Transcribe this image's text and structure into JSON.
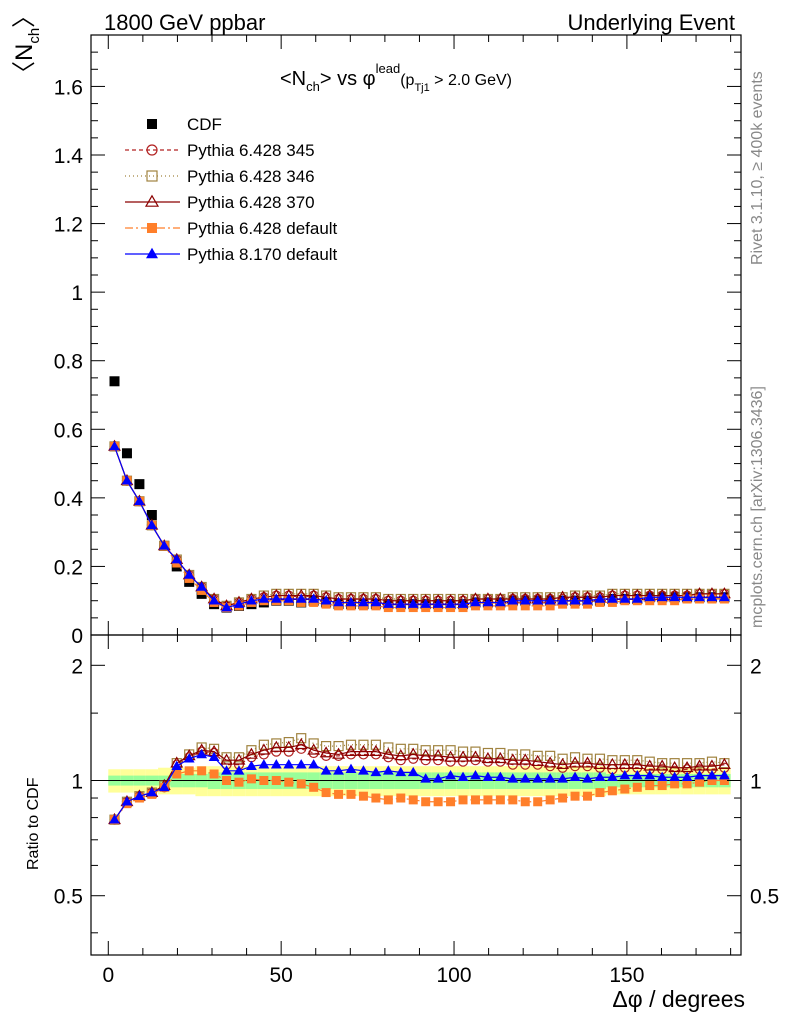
{
  "header": {
    "left": "1800 GeV ppbar",
    "right": "Underlying Event"
  },
  "side_labels": {
    "rivet": "Rivet 3.1.10, ≥ 400k events",
    "mcplots": "mcplots.cern.ch [arXiv:1306.3436]"
  },
  "plot_title": {
    "main": "<N",
    "main_sub": "ch",
    "mid": "> vs φ",
    "mid_sup": "lead",
    "paren_open": "(p",
    "paren_sub": "Tj1",
    "paren_rest": " > 2.0 GeV)"
  },
  "axes": {
    "ylabel_main": "〈N",
    "ylabel_sub": "ch",
    "ylabel_close": "〉",
    "ylabel_ratio": "Ratio to CDF",
    "xlabel": "Δφ / degrees"
  },
  "legend": [
    "CDF",
    "Pythia 6.428 345",
    "Pythia 6.428 346",
    "Pythia 6.428 370",
    "Pythia 6.428 default",
    "Pythia 8.170 default"
  ],
  "colors": {
    "cdf": "#000000",
    "p345": "#b22222",
    "p346": "#a0833f",
    "p370": "#8b0000",
    "pdef": "#ff7f2a",
    "p8": "#0000ff",
    "band_inner": "#99ff99",
    "band_outer": "#ffff99"
  },
  "chart_data": {
    "type": "scatter",
    "x": [
      1.8,
      5.4,
      9.0,
      12.6,
      16.2,
      19.8,
      23.4,
      27.0,
      30.6,
      34.2,
      37.8,
      41.4,
      45.0,
      48.6,
      52.2,
      55.8,
      59.4,
      63.0,
      66.6,
      70.2,
      73.8,
      77.4,
      81.0,
      84.6,
      88.2,
      91.8,
      95.4,
      99.0,
      102.6,
      106.2,
      109.8,
      113.4,
      117.0,
      120.6,
      124.2,
      127.8,
      131.4,
      135.0,
      138.6,
      142.2,
      145.8,
      149.4,
      153.0,
      156.6,
      160.2,
      163.8,
      167.4,
      171.0,
      174.6,
      178.2
    ],
    "xlim": [
      -5,
      183
    ],
    "ylim_main": [
      0,
      1.75
    ],
    "ylim_ratio": [
      0.35,
      2.4
    ],
    "ratio_log": true,
    "series": [
      {
        "name": "CDF",
        "values": [
          0.74,
          0.53,
          0.44,
          0.35,
          0.26,
          0.2,
          0.155,
          0.12,
          0.09,
          0.08,
          0.085,
          0.09,
          0.095,
          0.1,
          0.1,
          0.095,
          0.1,
          0.095,
          0.09,
          0.09,
          0.09,
          0.09,
          0.09,
          0.09,
          0.09,
          0.09,
          0.09,
          0.09,
          0.09,
          0.095,
          0.095,
          0.095,
          0.1,
          0.1,
          0.1,
          0.1,
          0.1,
          0.1,
          0.1,
          0.1,
          0.105,
          0.105,
          0.105,
          0.11,
          0.11,
          0.11,
          0.11,
          0.11,
          0.11,
          0.11
        ]
      },
      {
        "name": "Pythia 6.428 345",
        "values": [
          0.55,
          0.45,
          0.39,
          0.32,
          0.26,
          0.22,
          0.175,
          0.14,
          0.105,
          0.085,
          0.095,
          0.105,
          0.11,
          0.115,
          0.115,
          0.11,
          0.115,
          0.11,
          0.105,
          0.105,
          0.105,
          0.105,
          0.1,
          0.1,
          0.1,
          0.1,
          0.1,
          0.1,
          0.1,
          0.105,
          0.105,
          0.105,
          0.105,
          0.105,
          0.105,
          0.105,
          0.105,
          0.11,
          0.11,
          0.11,
          0.115,
          0.115,
          0.115,
          0.115,
          0.115,
          0.115,
          0.115,
          0.12,
          0.12,
          0.12
        ]
      },
      {
        "name": "Pythia 6.428 346",
        "values": [
          0.55,
          0.45,
          0.39,
          0.32,
          0.26,
          0.22,
          0.175,
          0.14,
          0.105,
          0.085,
          0.095,
          0.105,
          0.115,
          0.12,
          0.12,
          0.12,
          0.12,
          0.115,
          0.11,
          0.11,
          0.11,
          0.11,
          0.105,
          0.105,
          0.105,
          0.105,
          0.105,
          0.105,
          0.105,
          0.105,
          0.105,
          0.105,
          0.11,
          0.11,
          0.11,
          0.11,
          0.11,
          0.115,
          0.115,
          0.115,
          0.12,
          0.12,
          0.12,
          0.12,
          0.12,
          0.12,
          0.12,
          0.12,
          0.12,
          0.12
        ]
      },
      {
        "name": "Pythia 6.428 370",
        "values": [
          0.55,
          0.45,
          0.39,
          0.32,
          0.26,
          0.22,
          0.175,
          0.14,
          0.105,
          0.085,
          0.095,
          0.105,
          0.11,
          0.115,
          0.115,
          0.115,
          0.115,
          0.11,
          0.105,
          0.105,
          0.105,
          0.105,
          0.1,
          0.1,
          0.1,
          0.1,
          0.1,
          0.1,
          0.1,
          0.105,
          0.105,
          0.105,
          0.105,
          0.105,
          0.105,
          0.105,
          0.11,
          0.11,
          0.11,
          0.11,
          0.115,
          0.115,
          0.115,
          0.115,
          0.115,
          0.115,
          0.115,
          0.12,
          0.12,
          0.12
        ]
      },
      {
        "name": "Pythia 6.428 default",
        "values": [
          0.55,
          0.45,
          0.39,
          0.32,
          0.26,
          0.21,
          0.165,
          0.13,
          0.095,
          0.08,
          0.085,
          0.095,
          0.1,
          0.1,
          0.1,
          0.095,
          0.095,
          0.09,
          0.085,
          0.085,
          0.085,
          0.085,
          0.08,
          0.08,
          0.08,
          0.08,
          0.08,
          0.08,
          0.08,
          0.085,
          0.085,
          0.085,
          0.085,
          0.085,
          0.085,
          0.085,
          0.09,
          0.09,
          0.09,
          0.095,
          0.095,
          0.1,
          0.1,
          0.1,
          0.1,
          0.1,
          0.105,
          0.105,
          0.105,
          0.105
        ]
      },
      {
        "name": "Pythia 8.170 default",
        "values": [
          0.55,
          0.45,
          0.39,
          0.32,
          0.26,
          0.22,
          0.175,
          0.14,
          0.1,
          0.08,
          0.09,
          0.1,
          0.105,
          0.105,
          0.105,
          0.105,
          0.105,
          0.1,
          0.095,
          0.095,
          0.095,
          0.095,
          0.09,
          0.09,
          0.09,
          0.09,
          0.09,
          0.09,
          0.09,
          0.095,
          0.095,
          0.095,
          0.1,
          0.1,
          0.1,
          0.1,
          0.1,
          0.1,
          0.1,
          0.105,
          0.105,
          0.105,
          0.105,
          0.11,
          0.11,
          0.11,
          0.11,
          0.11,
          0.11,
          0.11
        ]
      }
    ],
    "ratios": [
      {
        "name": "Pythia 6.428 345",
        "values": [
          0.79,
          0.88,
          0.91,
          0.93,
          0.96,
          1.1,
          1.15,
          1.19,
          1.18,
          1.1,
          1.1,
          1.15,
          1.17,
          1.19,
          1.19,
          1.21,
          1.18,
          1.16,
          1.16,
          1.17,
          1.17,
          1.17,
          1.15,
          1.13,
          1.14,
          1.13,
          1.13,
          1.12,
          1.12,
          1.13,
          1.12,
          1.12,
          1.1,
          1.1,
          1.1,
          1.09,
          1.08,
          1.09,
          1.09,
          1.08,
          1.07,
          1.08,
          1.08,
          1.07,
          1.07,
          1.06,
          1.07,
          1.07,
          1.07,
          1.08
        ]
      },
      {
        "name": "Pythia 6.428 346",
        "values": [
          0.79,
          0.88,
          0.91,
          0.93,
          0.97,
          1.11,
          1.17,
          1.22,
          1.21,
          1.15,
          1.15,
          1.2,
          1.24,
          1.25,
          1.26,
          1.29,
          1.25,
          1.23,
          1.23,
          1.24,
          1.24,
          1.24,
          1.22,
          1.21,
          1.21,
          1.2,
          1.2,
          1.2,
          1.19,
          1.19,
          1.18,
          1.18,
          1.17,
          1.17,
          1.16,
          1.16,
          1.14,
          1.15,
          1.14,
          1.14,
          1.13,
          1.13,
          1.13,
          1.12,
          1.11,
          1.11,
          1.11,
          1.11,
          1.12,
          1.11
        ]
      },
      {
        "name": "Pythia 6.428 370",
        "values": [
          0.79,
          0.88,
          0.91,
          0.93,
          0.97,
          1.11,
          1.16,
          1.2,
          1.19,
          1.13,
          1.13,
          1.17,
          1.2,
          1.22,
          1.22,
          1.24,
          1.2,
          1.18,
          1.17,
          1.19,
          1.19,
          1.19,
          1.17,
          1.16,
          1.17,
          1.16,
          1.16,
          1.15,
          1.15,
          1.15,
          1.14,
          1.14,
          1.13,
          1.13,
          1.12,
          1.11,
          1.1,
          1.11,
          1.11,
          1.1,
          1.1,
          1.1,
          1.1,
          1.09,
          1.09,
          1.08,
          1.08,
          1.09,
          1.09,
          1.1
        ]
      },
      {
        "name": "Pythia 6.428 default",
        "values": [
          0.79,
          0.87,
          0.9,
          0.92,
          0.96,
          1.04,
          1.06,
          1.06,
          1.04,
          1.0,
          0.99,
          1.01,
          1.0,
          1.0,
          0.99,
          0.98,
          0.96,
          0.93,
          0.92,
          0.92,
          0.91,
          0.9,
          0.89,
          0.9,
          0.89,
          0.88,
          0.88,
          0.88,
          0.89,
          0.89,
          0.89,
          0.89,
          0.89,
          0.88,
          0.88,
          0.89,
          0.9,
          0.91,
          0.91,
          0.93,
          0.94,
          0.95,
          0.96,
          0.97,
          0.97,
          0.98,
          0.98,
          0.99,
          1.0,
          1.0
        ]
      },
      {
        "name": "Pythia 8.170 default",
        "values": [
          0.79,
          0.88,
          0.91,
          0.93,
          0.96,
          1.09,
          1.14,
          1.17,
          1.15,
          1.06,
          1.06,
          1.09,
          1.1,
          1.1,
          1.1,
          1.1,
          1.1,
          1.06,
          1.06,
          1.07,
          1.06,
          1.05,
          1.06,
          1.05,
          1.05,
          1.01,
          1.01,
          1.03,
          1.02,
          1.03,
          1.02,
          1.02,
          1.01,
          1.01,
          1.01,
          1.01,
          1.01,
          1.02,
          1.01,
          1.02,
          1.02,
          1.03,
          1.03,
          1.03,
          1.02,
          1.02,
          1.02,
          1.03,
          1.03,
          1.03
        ]
      }
    ],
    "band_inner_halfwidth": [
      0.03,
      0.03,
      0.03,
      0.03,
      0.03,
      0.04,
      0.04,
      0.04,
      0.05,
      0.05,
      0.05,
      0.05,
      0.05,
      0.05,
      0.05,
      0.05,
      0.05,
      0.05,
      0.05,
      0.05,
      0.05,
      0.05,
      0.05,
      0.05,
      0.05,
      0.05,
      0.05,
      0.05,
      0.05,
      0.05,
      0.05,
      0.05,
      0.05,
      0.05,
      0.05,
      0.05,
      0.05,
      0.05,
      0.05,
      0.05,
      0.04,
      0.04,
      0.04,
      0.04,
      0.04,
      0.04,
      0.04,
      0.04,
      0.04,
      0.04
    ],
    "band_outer_halfwidth": [
      0.07,
      0.07,
      0.07,
      0.07,
      0.08,
      0.08,
      0.08,
      0.09,
      0.09,
      0.09,
      0.09,
      0.09,
      0.09,
      0.09,
      0.09,
      0.09,
      0.09,
      0.09,
      0.09,
      0.09,
      0.09,
      0.09,
      0.09,
      0.09,
      0.09,
      0.09,
      0.09,
      0.09,
      0.09,
      0.09,
      0.09,
      0.09,
      0.09,
      0.09,
      0.09,
      0.09,
      0.09,
      0.09,
      0.09,
      0.09,
      0.08,
      0.08,
      0.08,
      0.08,
      0.08,
      0.08,
      0.08,
      0.08,
      0.08,
      0.08
    ],
    "main_y_ticks": [
      0,
      0.2,
      0.4,
      0.6,
      0.8,
      1,
      1.2,
      1.4,
      1.6
    ],
    "main_y_tick_labels": [
      "0",
      "0.2",
      "0.4",
      "0.6",
      "0.8",
      "1",
      "1.2",
      "1.4",
      "1.6"
    ],
    "ratio_y_ticks": [
      0.5,
      1,
      2
    ],
    "ratio_y_tick_labels": [
      "0.5",
      "1",
      "2"
    ],
    "x_ticks": [
      0,
      50,
      100,
      150
    ],
    "x_tick_labels": [
      "0",
      "50",
      "100",
      "150"
    ],
    "grid": false,
    "legend_position": "top-left"
  }
}
